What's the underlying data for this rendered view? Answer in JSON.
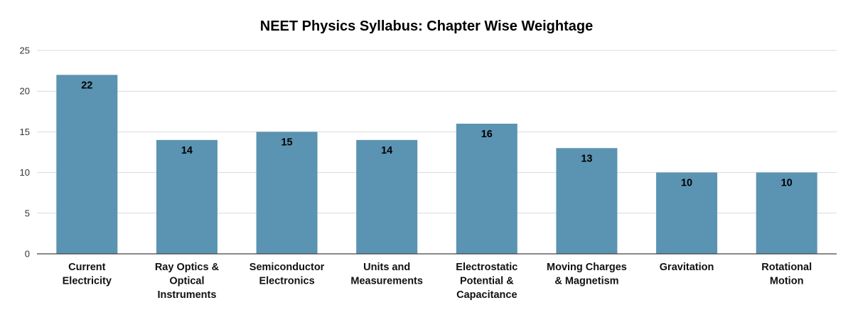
{
  "chart_data": {
    "type": "bar",
    "title": "NEET Physics Syllabus: Chapter Wise Weightage",
    "xlabel": "",
    "ylabel": "",
    "ylim": [
      0,
      25
    ],
    "yticks": [
      0,
      5,
      10,
      15,
      20,
      25
    ],
    "grid": true,
    "legend": "none",
    "categories": [
      [
        "Current",
        "Electricity"
      ],
      [
        "Ray Optics &",
        "Optical",
        "Instruments"
      ],
      [
        "Semiconductor",
        "Electronics"
      ],
      [
        "Units and",
        "Measurements"
      ],
      [
        "Electrostatic",
        "Potential &",
        "Capacitance"
      ],
      [
        "Moving Charges",
        "& Magnetism"
      ],
      [
        "Gravitation"
      ],
      [
        "Rotational",
        "Motion"
      ]
    ],
    "values": [
      22,
      14,
      15,
      14,
      16,
      13,
      10,
      10
    ],
    "data_labels": true,
    "bar_color": "#5b93b2",
    "gridline_color": "#d9d9d9",
    "axis_color": "#444444"
  }
}
